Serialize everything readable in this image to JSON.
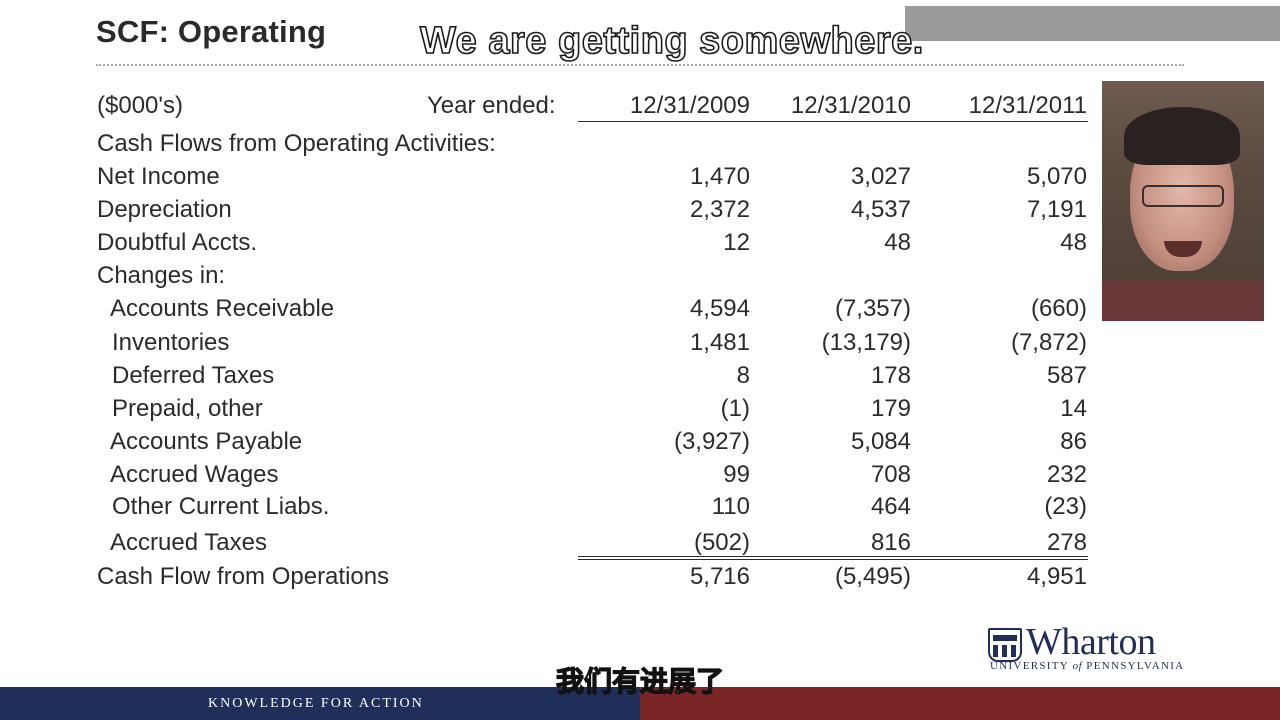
{
  "slide": {
    "title": "SCF: Operating",
    "subtitle_top": "We are getting somewhere.",
    "subtitle_bottom": "我们有进展了"
  },
  "table": {
    "unit_label": "($000's)",
    "year_label": "Year ended:",
    "columns": [
      "12/31/2009",
      "12/31/2010",
      "12/31/2011"
    ],
    "section_header": "Cash Flows from Operating Activities:",
    "changes_header": "Changes in:",
    "rows": [
      {
        "label": "Net Income",
        "values": [
          "1,470",
          "3,027",
          "5,070"
        ]
      },
      {
        "label": "Depreciation",
        "values": [
          "2,372",
          "4,537",
          "7,191"
        ]
      },
      {
        "label": "Doubtful Accts.",
        "values": [
          "12",
          "48",
          "48"
        ]
      },
      {
        "label": "Accounts Receivable",
        "values": [
          "4,594",
          "(7,357)",
          "(660)"
        ]
      },
      {
        "label": "Inventories",
        "values": [
          "1,481",
          "(13,179)",
          "(7,872)"
        ]
      },
      {
        "label": "Deferred Taxes",
        "values": [
          "8",
          "178",
          "587"
        ]
      },
      {
        "label": "Prepaid, other",
        "values": [
          "(1)",
          "179",
          "14"
        ]
      },
      {
        "label": "Accounts Payable",
        "values": [
          "(3,927)",
          "5,084",
          "86"
        ]
      },
      {
        "label": "Accrued Wages",
        "values": [
          "99",
          "708",
          "232"
        ]
      },
      {
        "label": "Other Current Liabs.",
        "values": [
          "110",
          "464",
          "(23)"
        ]
      },
      {
        "label": "Accrued Taxes",
        "values": [
          "(502)",
          "816",
          "278"
        ]
      }
    ],
    "total": {
      "label": "Cash Flow from Operations",
      "values": [
        "5,716",
        "(5,495)",
        "4,951"
      ]
    }
  },
  "branding": {
    "logo_name": "Wharton",
    "logo_sub_1": "UNIVERSITY",
    "logo_sub_of": "of",
    "logo_sub_2": "PENNSYLVANIA",
    "footer_text": "KNOWLEDGE FOR ACTION",
    "navy": "#1f2f5a",
    "maroon": "#7a2626"
  }
}
